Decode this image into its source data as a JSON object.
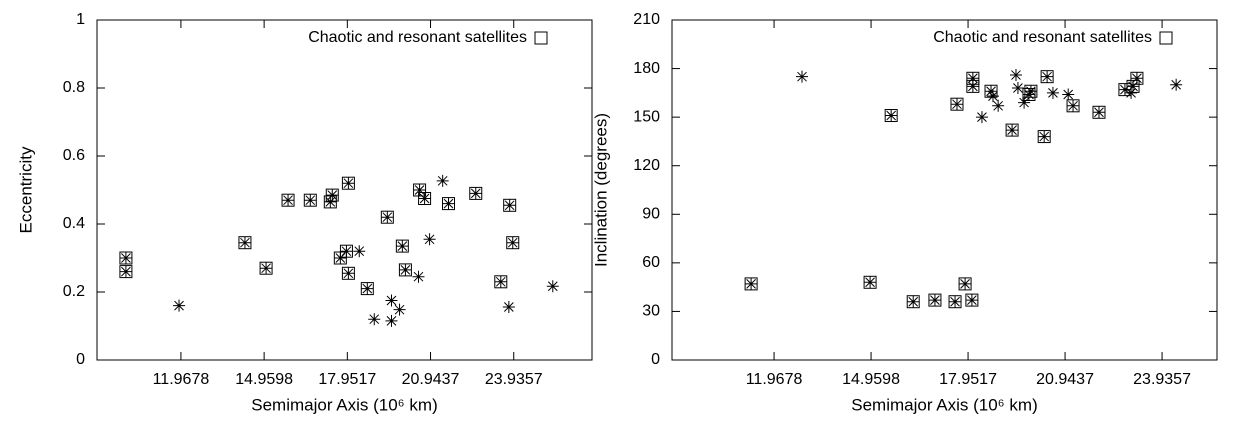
{
  "chart_data": [
    {
      "type": "scatter",
      "xlabel": "Semimajor Axis (10⁶ km)",
      "ylabel": "Eccentricity",
      "xlim": [
        8.95,
        26.75
      ],
      "ylim": [
        0,
        1
      ],
      "xticks": [
        11.9678,
        14.9598,
        17.9517,
        20.9437,
        23.9357
      ],
      "yticks": [
        0,
        0.2,
        0.4,
        0.6,
        0.8,
        1
      ],
      "legend": "upper right",
      "series": [
        {
          "marker": "asterisk",
          "color": "#000000",
          "x": [
            9.99,
            9.99,
            14.27,
            15.03,
            15.82,
            16.62,
            17.34,
            17.41,
            17.99,
            17.7,
            17.92,
            17.99,
            18.67,
            19.39,
            19.93,
            20.04,
            20.55,
            20.73,
            21.59,
            22.57,
            23.79,
            23.9,
            23.47,
            11.9,
            18.38,
            18.92,
            19.54,
            19.54,
            19.83,
            20.51,
            20.91,
            21.38,
            23.76,
            25.34
          ],
          "values": [
            0.3,
            0.26,
            0.345,
            0.27,
            0.47,
            0.47,
            0.465,
            0.485,
            0.52,
            0.3,
            0.32,
            0.255,
            0.21,
            0.42,
            0.335,
            0.265,
            0.5,
            0.475,
            0.46,
            0.49,
            0.455,
            0.345,
            0.23,
            0.16,
            0.32,
            0.12,
            0.175,
            0.115,
            0.148,
            0.245,
            0.355,
            0.527,
            0.156,
            0.217
          ]
        },
        {
          "name": "Chaotic and resonant satellites",
          "marker": "square",
          "color": "#000000",
          "x": [
            9.99,
            9.99,
            14.27,
            15.03,
            15.82,
            16.62,
            17.34,
            17.41,
            17.99,
            17.7,
            17.92,
            17.99,
            18.67,
            19.39,
            19.93,
            20.04,
            20.55,
            20.73,
            21.59,
            22.57,
            23.79,
            23.9,
            23.47
          ],
          "values": [
            0.3,
            0.26,
            0.345,
            0.27,
            0.47,
            0.47,
            0.465,
            0.485,
            0.52,
            0.3,
            0.32,
            0.255,
            0.21,
            0.42,
            0.335,
            0.265,
            0.5,
            0.475,
            0.46,
            0.49,
            0.455,
            0.345,
            0.23
          ]
        }
      ]
    },
    {
      "type": "scatter",
      "xlabel": "Semimajor Axis (10⁶ km)",
      "ylabel": "Inclination (degrees)",
      "xlim": [
        8.82,
        25.63
      ],
      "ylim": [
        0,
        210
      ],
      "xticks": [
        11.9678,
        14.9598,
        17.9517,
        20.9437,
        23.9357
      ],
      "yticks": [
        0,
        30,
        60,
        90,
        120,
        150,
        180,
        210
      ],
      "legend": "upper right",
      "series": [
        {
          "marker": "asterisk",
          "color": "#000000",
          "x": [
            11.26,
            14.93,
            15.58,
            16.26,
            16.93,
            17.55,
            17.86,
            18.07,
            17.61,
            18.1,
            18.1,
            18.66,
            19.31,
            19.83,
            19.89,
            20.3,
            20.39,
            21.19,
            21.99,
            22.79,
            23.04,
            23.16,
            12.83,
            18.38,
            18.72,
            18.88,
            19.43,
            19.49,
            19.68,
            20.57,
            21.04,
            24.37,
            22.98
          ],
          "values": [
            47,
            48,
            151,
            36,
            37,
            36,
            47,
            37,
            158,
            174,
            169,
            166,
            142,
            164,
            166,
            138,
            175,
            157,
            153,
            167,
            169,
            174,
            175,
            150,
            163,
            157,
            176,
            168,
            159,
            165,
            164,
            170,
            165
          ]
        },
        {
          "name": "Chaotic and resonant satellites",
          "marker": "square",
          "color": "#000000",
          "x": [
            11.26,
            14.93,
            15.58,
            16.26,
            16.93,
            17.55,
            17.86,
            18.07,
            17.61,
            18.1,
            18.1,
            18.66,
            19.31,
            19.83,
            19.89,
            20.3,
            20.39,
            21.19,
            21.99,
            22.79,
            23.04,
            23.16
          ],
          "values": [
            47,
            48,
            151,
            36,
            37,
            36,
            47,
            37,
            158,
            174,
            169,
            166,
            142,
            164,
            166,
            138,
            175,
            157,
            153,
            167,
            169,
            174
          ]
        }
      ]
    }
  ]
}
